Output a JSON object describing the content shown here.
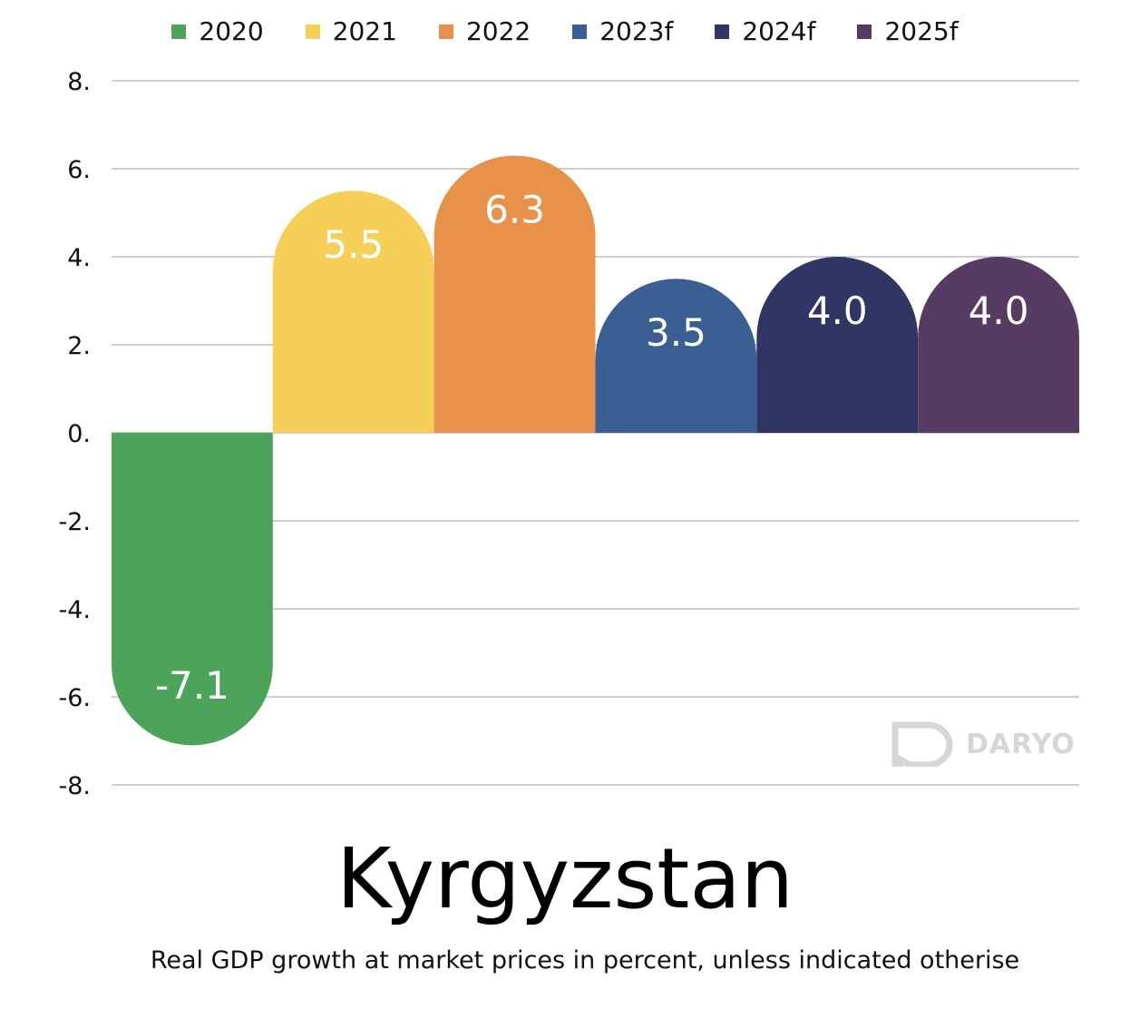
{
  "chart_data": {
    "type": "bar",
    "categories": [
      "2020",
      "2021",
      "2022",
      "2023f",
      "2024f",
      "2025f"
    ],
    "values": [
      -7.1,
      5.5,
      6.3,
      3.5,
      4.0,
      4.0
    ],
    "data_labels": [
      "-7.1",
      "5.5",
      "6.3",
      "3.5",
      "4.0",
      "4.0"
    ],
    "colors": [
      "#4ca35a",
      "#f5cf57",
      "#e8914b",
      "#3b5e93",
      "#303563",
      "#583b63"
    ],
    "title": "Kyrgyzstan",
    "subtitle": "Real GDP growth at market prices in percent, unless indicated otherise",
    "ylim": [
      -8,
      8
    ],
    "yticks": [
      8,
      6,
      4,
      2,
      0,
      -2,
      -4,
      -6,
      -8
    ],
    "ytick_labels": [
      "8.",
      "6.",
      "4.",
      "2.",
      "0.",
      "-2.",
      "-4.",
      "-6.",
      "-8."
    ],
    "grid": true,
    "legend": {
      "position": "top-center",
      "entries": [
        "2020",
        "2021",
        "2022",
        "2023f",
        "2024f",
        "2025f"
      ]
    }
  },
  "branding": {
    "logo_text": "DARYO",
    "logo_icon": "daryo-speech-bubble-icon",
    "logo_color": "#d6d6d6"
  }
}
